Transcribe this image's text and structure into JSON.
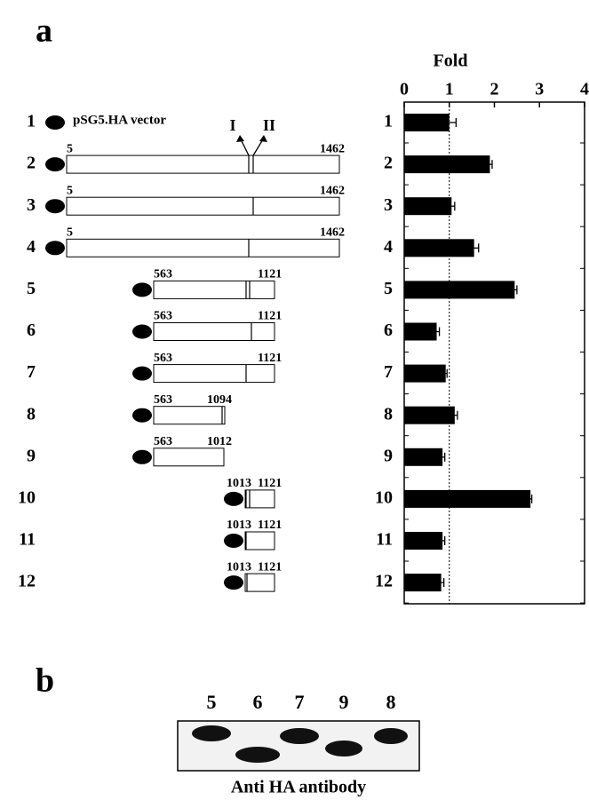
{
  "panel_a": {
    "label": "a",
    "constructs": [
      {
        "number": "1",
        "name": "pSG5.HA vector"
      },
      {
        "number": "2",
        "start": "5",
        "end": "1462"
      },
      {
        "number": "3",
        "start": "5",
        "end": "1462"
      },
      {
        "number": "4",
        "start": "5",
        "end": "1462"
      },
      {
        "number": "5",
        "start": "563",
        "end": "1121"
      },
      {
        "number": "6",
        "start": "563",
        "end": "1121"
      },
      {
        "number": "7",
        "start": "563",
        "end": "1121"
      },
      {
        "number": "8",
        "start": "563",
        "end": "1094"
      },
      {
        "number": "9",
        "start": "563",
        "end": "1012"
      },
      {
        "number": "10",
        "start": "1013",
        "end": "1121"
      },
      {
        "number": "11",
        "start": "1013",
        "end": "1121"
      },
      {
        "number": "12",
        "start": "1013",
        "end": "1121"
      }
    ],
    "sites": [
      "I",
      "II"
    ]
  },
  "chart_data": {
    "type": "bar",
    "orientation": "horizontal",
    "xlabel": "Fold",
    "categories": [
      "1",
      "2",
      "3",
      "4",
      "5",
      "6",
      "7",
      "8",
      "9",
      "10",
      "11",
      "12"
    ],
    "values": [
      1.0,
      1.9,
      1.05,
      1.55,
      2.45,
      0.72,
      0.92,
      1.12,
      0.85,
      2.8,
      0.85,
      0.82
    ],
    "errors": [
      0.15,
      0.05,
      0.07,
      0.1,
      0.05,
      0.06,
      0.03,
      0.06,
      0.05,
      0.03,
      0.05,
      0.06
    ],
    "xlim": [
      0,
      4
    ],
    "xticks": [
      0,
      1,
      2,
      3,
      4
    ],
    "reference_line": 1,
    "color": "#000000",
    "grid": false
  },
  "panel_b": {
    "label": "b",
    "lanes": [
      "5",
      "6",
      "7",
      "9",
      "8"
    ],
    "caption": "Anti HA antibody"
  }
}
